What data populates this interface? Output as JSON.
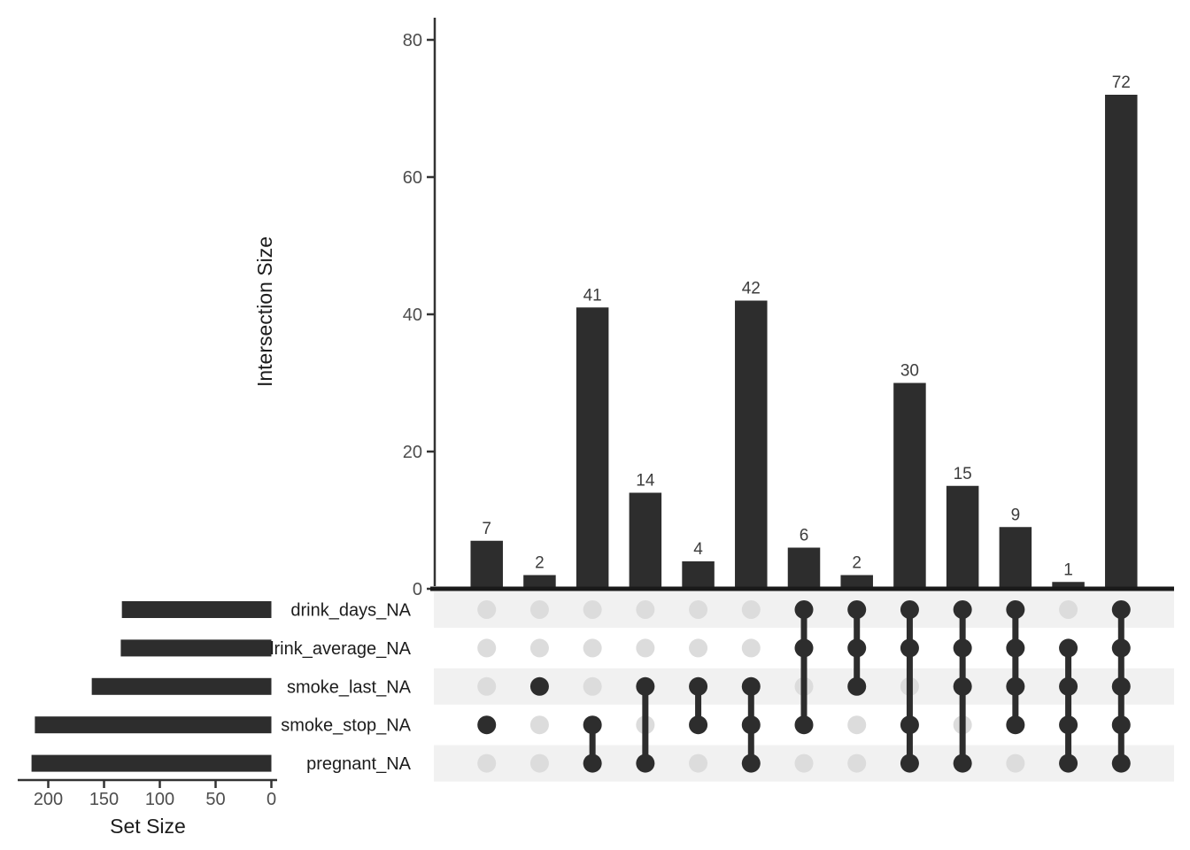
{
  "chart_data": {
    "type": "bar",
    "subtype": "upset",
    "intersection_axis": {
      "label": "Intersection Size",
      "ticks": [
        0,
        20,
        40,
        60,
        80
      ],
      "range": [
        0,
        80
      ],
      "grid": false
    },
    "set_axis": {
      "label": "Set Size",
      "ticks": [
        200,
        150,
        100,
        50,
        0
      ],
      "range": [
        0,
        227
      ],
      "grid": false
    },
    "sets": [
      {
        "name": "drink_days_NA",
        "size": 134
      },
      {
        "name": "drink_average_NA",
        "size": 135
      },
      {
        "name": "smoke_last_NA",
        "size": 161
      },
      {
        "name": "smoke_stop_NA",
        "size": 212
      },
      {
        "name": "pregnant_NA",
        "size": 215
      }
    ],
    "intersections": [
      {
        "value": 7,
        "members": [
          "smoke_stop_NA"
        ]
      },
      {
        "value": 2,
        "members": [
          "smoke_last_NA"
        ]
      },
      {
        "value": 41,
        "members": [
          "smoke_stop_NA",
          "pregnant_NA"
        ]
      },
      {
        "value": 14,
        "members": [
          "smoke_last_NA",
          "pregnant_NA"
        ]
      },
      {
        "value": 4,
        "members": [
          "smoke_last_NA",
          "smoke_stop_NA"
        ]
      },
      {
        "value": 42,
        "members": [
          "smoke_last_NA",
          "smoke_stop_NA",
          "pregnant_NA"
        ]
      },
      {
        "value": 6,
        "members": [
          "drink_days_NA",
          "drink_average_NA",
          "smoke_stop_NA"
        ]
      },
      {
        "value": 2,
        "members": [
          "drink_days_NA",
          "drink_average_NA",
          "smoke_last_NA"
        ]
      },
      {
        "value": 30,
        "members": [
          "drink_days_NA",
          "drink_average_NA",
          "smoke_stop_NA",
          "pregnant_NA"
        ]
      },
      {
        "value": 15,
        "members": [
          "drink_days_NA",
          "drink_average_NA",
          "smoke_last_NA",
          "pregnant_NA"
        ]
      },
      {
        "value": 9,
        "members": [
          "drink_days_NA",
          "drink_average_NA",
          "smoke_last_NA",
          "smoke_stop_NA"
        ]
      },
      {
        "value": 1,
        "members": [
          "drink_average_NA",
          "smoke_last_NA",
          "smoke_stop_NA",
          "pregnant_NA"
        ]
      },
      {
        "value": 72,
        "members": [
          "drink_days_NA",
          "drink_average_NA",
          "smoke_last_NA",
          "smoke_stop_NA",
          "pregnant_NA"
        ]
      }
    ],
    "colors": {
      "bar": "#2d2d2d",
      "dot_active": "#2d2d2d",
      "dot_inactive": "#dcdcdc",
      "stripe": "#f1f1f1",
      "axis_line": "#333333",
      "tick_text": "#4d4d4d",
      "value_text": "#3d3d3d",
      "label_text": "#1c1c1c",
      "baseline": "#1a1a1a"
    }
  }
}
